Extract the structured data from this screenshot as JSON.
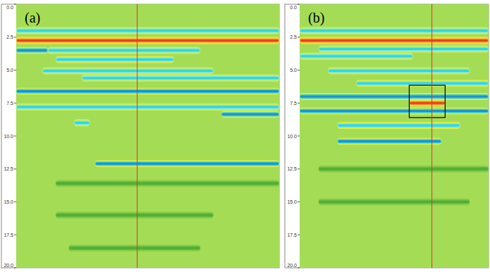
{
  "chart_data": [
    {
      "type": "radargram",
      "title": "(a)",
      "ylim": [
        0,
        20
      ],
      "xlim": [
        0,
        100
      ],
      "tick_labels": "y",
      "yticks": [
        {
          "value": 0,
          "label": "0.0"
        },
        2.5,
        {
          "value": 5,
          "label": "5.0"
        },
        7.5,
        {
          "value": 10,
          "label": "10.0"
        },
        12.5,
        {
          "value": 15,
          "label": "15.0"
        },
        17.5,
        {
          "value": 20,
          "label": "20.0"
        }
      ],
      "marker_x": 46,
      "layers": [
        {
          "depth": 2.0,
          "x0": 0,
          "x1": 100,
          "color": "cyan"
        },
        {
          "depth": 2.75,
          "x0": 0,
          "x1": 100,
          "color": "red"
        },
        {
          "depth": 3.5,
          "x0": 0,
          "x1": 12,
          "color": "blue"
        },
        {
          "depth": 3.5,
          "x0": 12,
          "x1": 70,
          "color": "cyan"
        },
        {
          "depth": 4.2,
          "x0": 15,
          "x1": 60,
          "color": "cyan"
        },
        {
          "depth": 5.05,
          "x0": 10,
          "x1": 75,
          "color": "cyan"
        },
        {
          "depth": 5.6,
          "x0": 25,
          "x1": 100,
          "color": "cyan"
        },
        {
          "depth": 6.6,
          "x0": 0,
          "x1": 100,
          "color": "blue"
        },
        {
          "depth": 7.8,
          "x0": 0,
          "x1": 100,
          "color": "cyan"
        },
        {
          "depth": 8.35,
          "x0": 78,
          "x1": 100,
          "color": "blue"
        },
        {
          "depth": 9.0,
          "x0": 22,
          "x1": 28,
          "color": "cyan"
        },
        {
          "depth": 12.1,
          "x0": 30,
          "x1": 100,
          "color": "blue"
        },
        {
          "depth": 13.6,
          "x0": 15,
          "x1": 100,
          "color": "darkgreen"
        },
        {
          "depth": 16.0,
          "x0": 15,
          "x1": 75,
          "color": "darkgreen"
        },
        {
          "depth": 18.5,
          "x0": 20,
          "x1": 70,
          "color": "darkgreen"
        }
      ]
    },
    {
      "type": "radargram",
      "title": "(b)",
      "ylim": [
        0,
        20
      ],
      "xlim": [
        0,
        100
      ],
      "tick_labels": "y",
      "yticks": [
        {
          "value": 0,
          "label": "0.0"
        },
        2.5,
        {
          "value": 5,
          "label": "5.0"
        },
        7.5,
        {
          "value": 10,
          "label": "10.0"
        },
        12.5,
        {
          "value": 15,
          "label": "15.0"
        },
        17.5,
        {
          "value": 20,
          "label": "20.0"
        }
      ],
      "marker_x": 70,
      "box": {
        "x0": 58,
        "x1": 77,
        "y0": 6.15,
        "y1": 8.6
      },
      "layers": [
        {
          "depth": 2.0,
          "x0": 0,
          "x1": 100,
          "color": "cyan"
        },
        {
          "depth": 2.75,
          "x0": 0,
          "x1": 100,
          "color": "red"
        },
        {
          "depth": 3.4,
          "x0": 10,
          "x1": 100,
          "color": "cyan"
        },
        {
          "depth": 3.95,
          "x0": 0,
          "x1": 60,
          "color": "cyan"
        },
        {
          "depth": 5.05,
          "x0": 15,
          "x1": 90,
          "color": "cyan"
        },
        {
          "depth": 6.0,
          "x0": 30,
          "x1": 100,
          "color": "cyan"
        },
        {
          "depth": 7.0,
          "x0": 0,
          "x1": 100,
          "color": "blue"
        },
        {
          "depth": 7.5,
          "x0": 58,
          "x1": 77,
          "color": "red"
        },
        {
          "depth": 8.1,
          "x0": 0,
          "x1": 100,
          "color": "blue"
        },
        {
          "depth": 9.2,
          "x0": 20,
          "x1": 85,
          "color": "cyan"
        },
        {
          "depth": 10.4,
          "x0": 20,
          "x1": 75,
          "color": "blue"
        },
        {
          "depth": 12.5,
          "x0": 10,
          "x1": 100,
          "color": "darkgreen"
        },
        {
          "depth": 15.0,
          "x0": 10,
          "x1": 90,
          "color": "darkgreen"
        }
      ]
    }
  ]
}
